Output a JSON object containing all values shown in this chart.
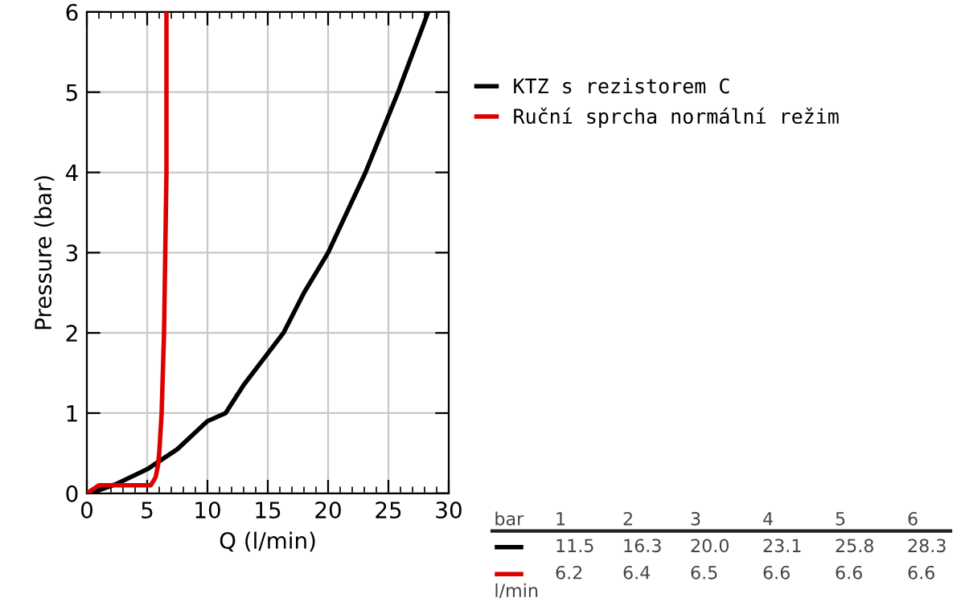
{
  "chart_data": {
    "type": "line",
    "xlabel": "Q (l/min)",
    "ylabel": "Pressure (bar)",
    "xlim": [
      0,
      30
    ],
    "xticks": [
      0,
      5,
      10,
      15,
      20,
      25,
      30
    ],
    "ylim": [
      0,
      6
    ],
    "yticks": [
      0,
      1,
      2,
      3,
      4,
      5,
      6
    ],
    "grid": true,
    "legend": "top right",
    "marker": "none",
    "line_style": "solid",
    "series": [
      {
        "name": "KTZ s rezistorem C",
        "color": "#000000",
        "x": [
          0,
          1,
          2.5,
          5,
          7.5,
          10,
          11.5,
          13,
          16.3,
          18,
          20,
          23.1,
          25.8,
          28.3
        ],
        "values": [
          0,
          0.04,
          0.12,
          0.3,
          0.55,
          0.9,
          1,
          1.35,
          2,
          2.5,
          3,
          4,
          5,
          6
        ]
      },
      {
        "name": "Ruční sprcha normální režim",
        "color": "#dd0000",
        "x": [
          0,
          0.5,
          1,
          3,
          5.3,
          5.7,
          5.9,
          6,
          6.2,
          6.4,
          6.5,
          6.6,
          6.6,
          6.6
        ],
        "values": [
          0,
          0.05,
          0.1,
          0.1,
          0.1,
          0.2,
          0.35,
          0.5,
          1,
          2,
          3,
          4,
          5,
          6
        ]
      }
    ],
    "annotations": [
      "bar",
      "1",
      "2",
      "3",
      "4",
      "5",
      "6",
      "11.5",
      "16.3",
      "20.0",
      "23.1",
      "25.8",
      "28.3",
      "6.2",
      "6.4",
      "6.5",
      "6.6",
      "6.6",
      "6.6",
      "l/min"
    ]
  }
}
